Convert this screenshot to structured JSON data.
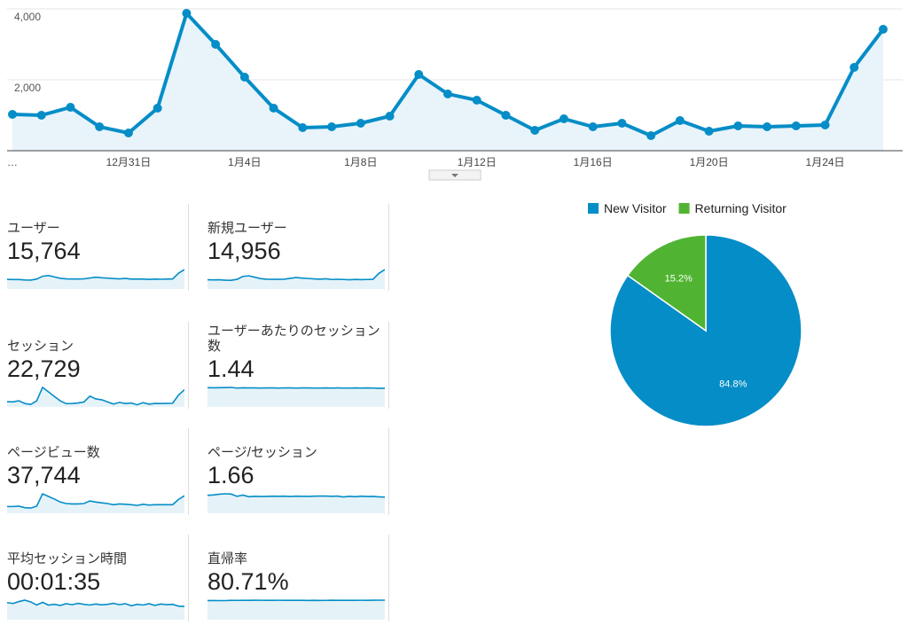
{
  "chart_data": [
    {
      "type": "line",
      "color": "#058dc7",
      "categories": [
        "…",
        null,
        null,
        null,
        "12月31日",
        null,
        null,
        null,
        "1月4日",
        null,
        null,
        null,
        "1月8日",
        null,
        null,
        null,
        "1月12日",
        null,
        null,
        null,
        "1月16日",
        null,
        null,
        null,
        "1月20日",
        null,
        null,
        null,
        "1月24日",
        null,
        null
      ],
      "values": [
        1025,
        1000,
        1225,
        675,
        500,
        1200,
        3875,
        3000,
        2075,
        1200,
        650,
        675,
        775,
        975,
        2150,
        1600,
        1425,
        1000,
        575,
        900,
        675,
        775,
        425,
        850,
        550,
        700,
        675,
        700,
        725,
        2350,
        3425
      ],
      "ylim": [
        0,
        4000
      ],
      "yticks": [
        {
          "value": 2000,
          "label": "2,000"
        },
        {
          "value": 4000,
          "label": "4,000"
        }
      ],
      "grid": true
    },
    {
      "type": "pie",
      "legend": "top",
      "series": [
        {
          "name": "New Visitor",
          "color": "#058dc7",
          "values": [
            84.8
          ],
          "value_labels": [
            "84.8%"
          ]
        },
        {
          "name": "Returning Visitor",
          "color": "#50b432",
          "values": [
            15.2
          ],
          "value_labels": [
            "15.2%"
          ]
        }
      ]
    }
  ],
  "metrics": [
    {
      "label": "ユーザー",
      "value": "15,764",
      "trend": [
        700,
        690,
        690,
        660,
        650,
        720,
        930,
        980,
        880,
        780,
        740,
        730,
        730,
        740,
        800,
        860,
        820,
        790,
        760,
        740,
        770,
        720,
        730,
        720,
        700,
        720,
        710,
        720,
        730,
        1150,
        1420
      ]
    },
    {
      "label": "新規ユーザー",
      "value": "14,956",
      "trend": [
        660,
        650,
        660,
        630,
        620,
        690,
        900,
        940,
        840,
        740,
        700,
        690,
        690,
        700,
        760,
        820,
        780,
        750,
        720,
        700,
        730,
        680,
        690,
        680,
        660,
        680,
        670,
        680,
        690,
        1120,
        1390
      ]
    },
    {
      "label": "セッション",
      "value": "22,729",
      "trend": [
        1025,
        1000,
        1225,
        675,
        500,
        1200,
        3875,
        3000,
        2075,
        1200,
        650,
        675,
        775,
        975,
        2150,
        1600,
        1425,
        1000,
        575,
        900,
        675,
        775,
        425,
        850,
        550,
        700,
        675,
        700,
        725,
        2350,
        3425
      ]
    },
    {
      "label": "ユーザーあたりのセッション数",
      "value": "1.44",
      "trend": [
        1.45,
        1.44,
        1.45,
        1.46,
        1.47,
        1.42,
        1.44,
        1.43,
        1.43,
        1.42,
        1.43,
        1.43,
        1.42,
        1.43,
        1.43,
        1.42,
        1.43,
        1.43,
        1.42,
        1.42,
        1.43,
        1.42,
        1.43,
        1.42,
        1.42,
        1.43,
        1.42,
        1.43,
        1.42,
        1.4,
        1.41
      ]
    },
    {
      "label": "ページビュー数",
      "value": "37,744",
      "trend": [
        1800,
        1800,
        1900,
        1500,
        1400,
        1900,
        5200,
        4500,
        3800,
        3000,
        2600,
        2500,
        2500,
        2600,
        3300,
        3000,
        2800,
        2600,
        2300,
        2500,
        2400,
        2300,
        2100,
        2400,
        2200,
        2300,
        2300,
        2300,
        2300,
        3700,
        4700
      ]
    },
    {
      "label": "ページ/セッション",
      "value": "1.66",
      "trend": [
        1.72,
        1.75,
        1.82,
        1.86,
        1.83,
        1.62,
        1.74,
        1.58,
        1.62,
        1.6,
        1.61,
        1.63,
        1.62,
        1.63,
        1.6,
        1.63,
        1.62,
        1.61,
        1.63,
        1.64,
        1.64,
        1.62,
        1.64,
        1.56,
        1.62,
        1.58,
        1.63,
        1.6,
        1.61,
        1.57,
        1.55
      ]
    },
    {
      "label": "平均セッション時間",
      "value": "00:01:35",
      "trend": [
        98,
        93,
        104,
        112,
        102,
        84,
        100,
        84,
        88,
        82,
        92,
        86,
        94,
        88,
        84,
        90,
        85,
        88,
        94,
        86,
        92,
        80,
        88,
        84,
        92,
        82,
        90,
        86,
        88,
        78,
        76
      ]
    },
    {
      "label": "直帰率",
      "value": "80.71%",
      "trend": [
        80.2,
        80.1,
        80.0,
        80.0,
        81.2,
        81.0,
        81.4,
        81.2,
        81.5,
        81.4,
        81.2,
        81.3,
        81.4,
        81.2,
        81.3,
        81.3,
        81.1,
        80.8,
        81.2,
        80.9,
        81.0,
        81.6,
        81.2,
        81.3,
        81.1,
        81.3,
        81.4,
        81.2,
        81.5,
        81.9,
        81.9
      ]
    }
  ]
}
